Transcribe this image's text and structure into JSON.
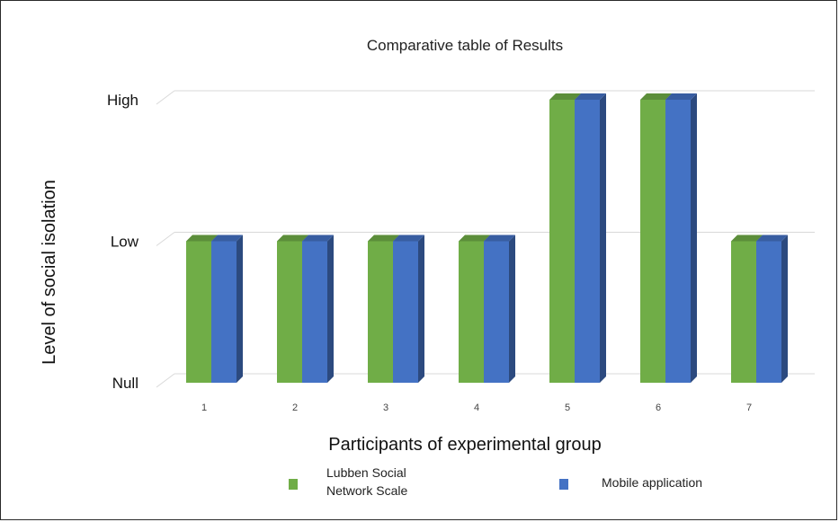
{
  "chart_data": {
    "type": "bar",
    "title": "Comparative table of Results",
    "xlabel": "Participants of experimental group",
    "ylabel": "Level of social isolation",
    "y_levels": [
      "Null",
      "Low",
      "High"
    ],
    "ylim": [
      0,
      2
    ],
    "categories": [
      "1",
      "2",
      "3",
      "4",
      "5",
      "6",
      "7"
    ],
    "series": [
      {
        "name": "Lubben Social Network Scale",
        "legend_lines": [
          "Lubben Social",
          "Network Scale"
        ],
        "color": "#70ad47",
        "values": [
          1,
          1,
          1,
          1,
          2,
          2,
          1
        ]
      },
      {
        "name": "Mobile application",
        "legend_lines": [
          "Mobile application"
        ],
        "color": "#4472c4",
        "values": [
          1,
          1,
          1,
          1,
          2,
          2,
          1
        ]
      }
    ],
    "grid": true,
    "legend_position": "bottom",
    "style": "3d-clustered-column"
  }
}
